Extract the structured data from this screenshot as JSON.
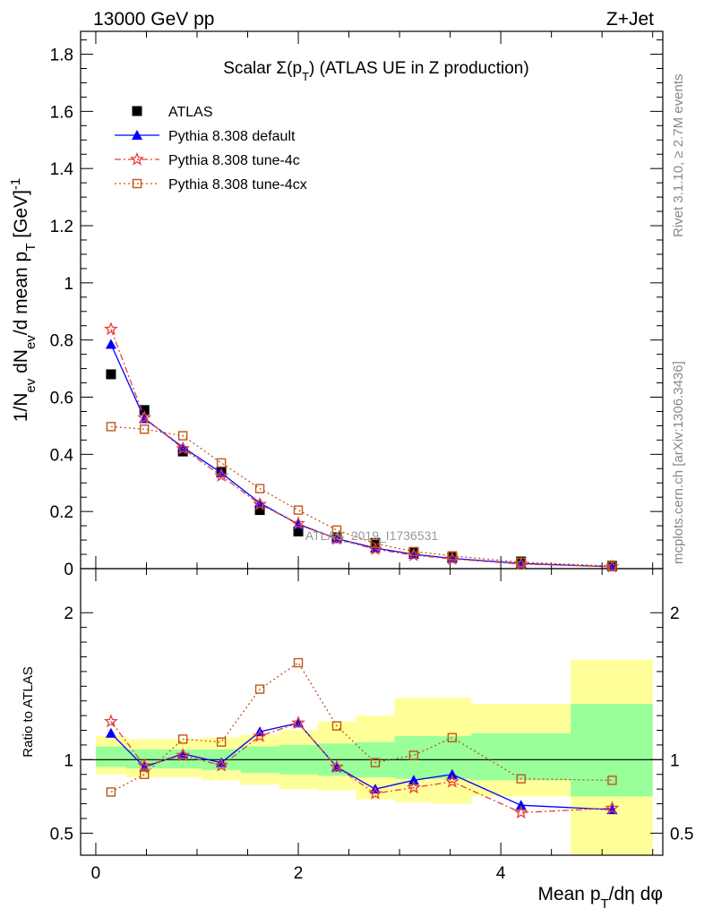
{
  "header": {
    "left": "13000 GeV pp",
    "right": "Z+Jet"
  },
  "side_labels": {
    "rivet": "Rivet 3.1.10, ≥ 2.7M events",
    "mcplots": "mcplots.cern.ch [arXiv:1306.3436]"
  },
  "watermark": "ATLAS_2019_I1736531",
  "chart_data": {
    "type": "scatter",
    "title": "Scalar Σ(p_T) (ATLAS UE in Z production)",
    "xlabel": "Mean p_T/dη dφ",
    "ylabel": "1/N_ev dN_ev/d mean p_T [GeV]^-1",
    "xlim": [
      -0.15,
      5.6
    ],
    "ylim": [
      0,
      1.88
    ],
    "xticks": [
      "0",
      "2",
      "4"
    ],
    "yticks": [
      "0",
      "0.2",
      "0.4",
      "0.6",
      "0.8",
      "1",
      "1.2",
      "1.4",
      "1.6",
      "1.8"
    ],
    "legend_position": "top-left",
    "x": [
      0.15,
      0.48,
      0.86,
      1.24,
      1.62,
      2.0,
      2.38,
      2.76,
      3.14,
      3.52,
      4.2,
      5.1
    ],
    "bin_edges": [
      0.0,
      0.3,
      0.67,
      1.05,
      1.43,
      1.81,
      2.19,
      2.57,
      2.95,
      3.33,
      3.71,
      4.69,
      5.5
    ],
    "series": [
      {
        "name": "ATLAS",
        "color": "#000000",
        "marker": "square-filled",
        "values": [
          0.68,
          0.555,
          0.41,
          0.34,
          0.205,
          0.13,
          0.11,
          0.09,
          0.058,
          0.04,
          0.025,
          0.01
        ]
      },
      {
        "name": "Pythia 8.308 default",
        "color": "#0000ff",
        "marker": "triangle-filled",
        "values": [
          0.785,
          0.525,
          0.425,
          0.335,
          0.23,
          0.155,
          0.105,
          0.072,
          0.05,
          0.036,
          0.018,
          0.0068
        ]
      },
      {
        "name": "Pythia 8.308 tune-4c",
        "color": "#e8403c",
        "marker": "star-open",
        "values": [
          0.838,
          0.528,
          0.42,
          0.325,
          0.225,
          0.158,
          0.104,
          0.068,
          0.047,
          0.034,
          0.016,
          0.0068
        ]
      },
      {
        "name": "Pythia 8.308 tune-4cx",
        "color": "#c0561a",
        "marker": "square-open",
        "values": [
          0.497,
          0.488,
          0.465,
          0.37,
          0.28,
          0.205,
          0.135,
          0.088,
          0.06,
          0.045,
          0.0225,
          0.0088
        ]
      }
    ],
    "ratio": {
      "ylabel": "Ratio to ATLAS",
      "ylim": [
        0.35,
        2.3
      ],
      "yticks": [
        "0.5",
        "1",
        "2"
      ],
      "reference": 1,
      "band_green": [
        [
          0.95,
          1.09
        ],
        [
          0.94,
          1.07
        ],
        [
          0.94,
          1.07
        ],
        [
          0.93,
          1.07
        ],
        [
          0.91,
          1.09
        ],
        [
          0.9,
          1.1
        ],
        [
          0.89,
          1.11
        ],
        [
          0.88,
          1.12
        ],
        [
          0.87,
          1.16
        ],
        [
          0.87,
          1.16
        ],
        [
          0.86,
          1.18
        ],
        [
          0.75,
          1.38
        ]
      ],
      "band_yellow": [
        [
          0.9,
          1.16
        ],
        [
          0.88,
          1.14
        ],
        [
          0.88,
          1.14
        ],
        [
          0.86,
          1.15
        ],
        [
          0.83,
          1.17
        ],
        [
          0.8,
          1.2
        ],
        [
          0.79,
          1.26
        ],
        [
          0.73,
          1.3
        ],
        [
          0.71,
          1.42
        ],
        [
          0.7,
          1.42
        ],
        [
          0.75,
          1.38
        ],
        [
          0.35,
          1.68
        ]
      ],
      "series": [
        {
          "name": "Pythia 8.308 default",
          "values": [
            1.18,
            0.95,
            1.04,
            0.98,
            1.19,
            1.25,
            0.95,
            0.8,
            0.86,
            0.9,
            0.69,
            0.66
          ]
        },
        {
          "name": "Pythia 8.308 tune-4c",
          "values": [
            1.26,
            0.96,
            1.03,
            0.96,
            1.16,
            1.25,
            0.95,
            0.77,
            0.81,
            0.85,
            0.64,
            0.67
          ]
        },
        {
          "name": "Pythia 8.308 tune-4cx",
          "values": [
            0.78,
            0.9,
            1.14,
            1.12,
            1.48,
            1.66,
            1.23,
            0.98,
            1.03,
            1.15,
            0.87,
            0.86
          ]
        }
      ]
    }
  }
}
